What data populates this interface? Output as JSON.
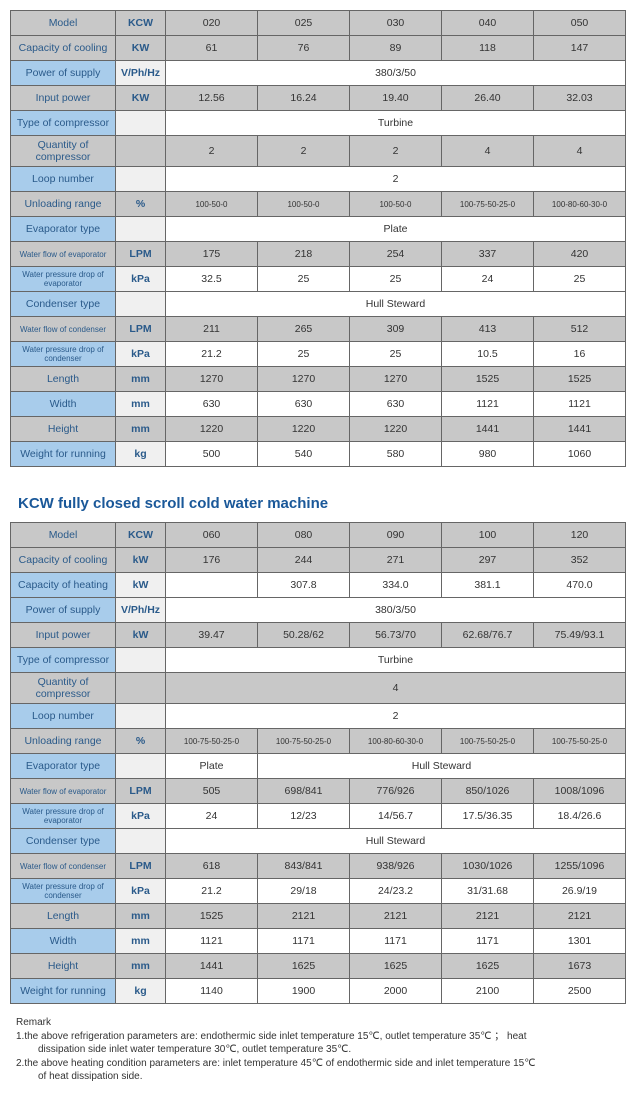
{
  "table1": {
    "header_label": "Model",
    "header_unit": "KCW",
    "cols": [
      "020",
      "025",
      "030",
      "040",
      "050"
    ],
    "rows": [
      {
        "label": "Capacity of cooling",
        "unit": "KW",
        "cells": [
          "61",
          "76",
          "89",
          "118",
          "147"
        ],
        "hdr": true
      },
      {
        "label": "Power of supply",
        "unit": "V/Ph/Hz",
        "span": "380/3/50"
      },
      {
        "label": "Input power",
        "unit": "KW",
        "cells": [
          "12.56",
          "16.24",
          "19.40",
          "26.40",
          "32.03"
        ],
        "hdr": true
      },
      {
        "label": "Type of compressor",
        "unit": "",
        "span": "Turbine"
      },
      {
        "label": "Quantity of compressor",
        "unit": "",
        "cells": [
          "2",
          "2",
          "2",
          "4",
          "4"
        ],
        "hdr": true
      },
      {
        "label": "Loop number",
        "unit": "",
        "span": "2"
      },
      {
        "label": "Unloading range",
        "unit": "%",
        "cells": [
          "100-50-0",
          "100-50-0",
          "100-50-0",
          "100-75-50-25-0",
          "100-80-60-30-0"
        ],
        "hdr": true,
        "small": true
      },
      {
        "label": "Evaporator type",
        "unit": "",
        "span": "Plate"
      },
      {
        "label": "Water flow of evaporator",
        "unit": "LPM",
        "cells": [
          "175",
          "218",
          "254",
          "337",
          "420"
        ],
        "hdr": true,
        "smallLabel": true
      },
      {
        "label": "Water pressure drop of evaporator",
        "unit": "kPa",
        "cells": [
          "32.5",
          "25",
          "25",
          "24",
          "25"
        ],
        "smallLabel": true
      },
      {
        "label": "Condenser type",
        "unit": "",
        "span": "Hull Steward"
      },
      {
        "label": "Water flow of condenser",
        "unit": "LPM",
        "cells": [
          "211",
          "265",
          "309",
          "413",
          "512"
        ],
        "hdr": true,
        "smallLabel": true
      },
      {
        "label": "Water pressure drop of condenser",
        "unit": "kPa",
        "cells": [
          "21.2",
          "25",
          "25",
          "10.5",
          "16"
        ],
        "smallLabel": true
      },
      {
        "label": "Length",
        "unit": "mm",
        "cells": [
          "1270",
          "1270",
          "1270",
          "1525",
          "1525"
        ],
        "hdr": true,
        "boldUnit": true
      },
      {
        "label": "Width",
        "unit": "mm",
        "cells": [
          "630",
          "630",
          "630",
          "1121",
          "1121"
        ]
      },
      {
        "label": "Height",
        "unit": "mm",
        "cells": [
          "1220",
          "1220",
          "1220",
          "1441",
          "1441"
        ],
        "hdr": true
      },
      {
        "label": "Weight for running",
        "unit": "kg",
        "cells": [
          "500",
          "540",
          "580",
          "980",
          "1060"
        ]
      }
    ]
  },
  "section_title": "KCW fully closed scroll cold water machine",
  "table2": {
    "header_label": "Model",
    "header_unit": "KCW",
    "cols": [
      "060",
      "080",
      "090",
      "100",
      "120"
    ],
    "rows": [
      {
        "label": "Capacity of cooling",
        "unit": "kW",
        "cells": [
          "176",
          "244",
          "271",
          "297",
          "352"
        ],
        "hdr": true
      },
      {
        "label": "Capacity of heating",
        "unit": "kW",
        "cells": [
          "",
          "307.8",
          "334.0",
          "381.1",
          "470.0"
        ]
      },
      {
        "label": "Power of supply",
        "unit": "V/Ph/Hz",
        "span": "380/3/50"
      },
      {
        "label": "Input power",
        "unit": "kW",
        "cells": [
          "39.47",
          "50.28/62",
          "56.73/70",
          "62.68/76.7",
          "75.49/93.1"
        ],
        "hdr": true
      },
      {
        "label": "Type of compressor",
        "unit": "",
        "span": "Turbine"
      },
      {
        "label": "Quantity of compressor",
        "unit": "",
        "span": "4",
        "hdr": true
      },
      {
        "label": "Loop number",
        "unit": "",
        "span": "2"
      },
      {
        "label": "Unloading range",
        "unit": "%",
        "cells": [
          "100-75-50-25-0",
          "100-75-50-25-0",
          "100-80-60-30-0",
          "100-75-50-25-0",
          "100-75-50-25-0"
        ],
        "hdr": true,
        "small": true
      },
      {
        "label": "Evaporator type",
        "unit": "",
        "split": [
          "Plate",
          "Hull Steward"
        ],
        "splitAt": 1
      },
      {
        "label": "Water flow of evaporator",
        "unit": "LPM",
        "cells": [
          "505",
          "698/841",
          "776/926",
          "850/1026",
          "1008/1096"
        ],
        "hdr": true,
        "smallLabel": true
      },
      {
        "label": "Water pressure drop of evaporator",
        "unit": "kPa",
        "cells": [
          "24",
          "12/23",
          "14/56.7",
          "17.5/36.35",
          "18.4/26.6"
        ],
        "smallLabel": true
      },
      {
        "label": "Condenser type",
        "unit": "",
        "span": "Hull Steward"
      },
      {
        "label": "Water flow of condenser",
        "unit": "LPM",
        "cells": [
          "618",
          "843/841",
          "938/926",
          "1030/1026",
          "1255/1096"
        ],
        "hdr": true,
        "smallLabel": true
      },
      {
        "label": "Water pressure drop of condenser",
        "unit": "kPa",
        "cells": [
          "21.2",
          "29/18",
          "24/23.2",
          "31/31.68",
          "26.9/19"
        ],
        "smallLabel": true
      },
      {
        "label": "Length",
        "unit": "mm",
        "cells": [
          "1525",
          "2121",
          "2121",
          "2121",
          "2121"
        ],
        "hdr": true
      },
      {
        "label": "Width",
        "unit": "mm",
        "cells": [
          "1121",
          "1171",
          "1171",
          "1171",
          "1301"
        ]
      },
      {
        "label": "Height",
        "unit": "mm",
        "cells": [
          "1441",
          "1625",
          "1625",
          "1625",
          "1673"
        ],
        "hdr": true
      },
      {
        "label": "Weight for running",
        "unit": "kg",
        "cells": [
          "1140",
          "1900",
          "2000",
          "2100",
          "2500"
        ]
      }
    ]
  },
  "remark": {
    "heading": "Remark",
    "line1a": "1.the above refrigeration parameters are: endothermic side inlet temperature 15℃, outlet temperature 35℃ ； heat",
    "line1b": "dissipation side inlet water temperature 30℃, outlet temperature 35℃.",
    "line2a": "2.the above heating condition parameters are: inlet temperature 45℃ of endothermic side and inlet temperature 15℃",
    "line2b": "of heat dissipation side."
  }
}
